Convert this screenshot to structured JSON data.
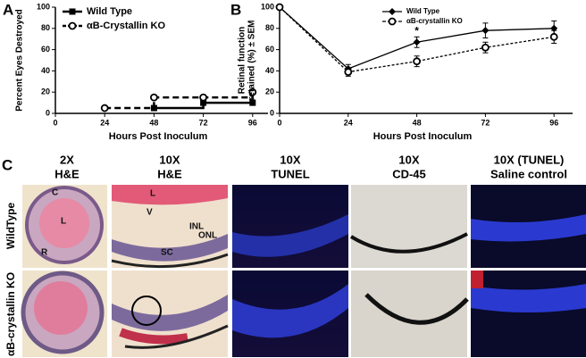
{
  "chart_data": [
    {
      "type": "line",
      "panel": "A",
      "ylabel": "Percent Eyes Destroyed",
      "xlabel": "Hours Post Inoculum",
      "x": [
        0,
        24,
        48,
        72,
        96
      ],
      "xlim": [
        0,
        100
      ],
      "xticks": [
        0,
        24,
        48,
        72,
        96
      ],
      "ylim": [
        0,
        100
      ],
      "yticks": [
        0,
        20,
        40,
        60,
        80,
        100
      ],
      "step": true,
      "legend": "upper left",
      "series": [
        {
          "name": "Wild Type",
          "color": "#000000",
          "marker": "square",
          "dashed": false,
          "values": [
            null,
            null,
            5,
            10,
            10
          ]
        },
        {
          "name": "αB-Crystallin KO",
          "color": "#000000",
          "marker": "circle",
          "dashed": true,
          "values": [
            null,
            5,
            15,
            15,
            20
          ]
        }
      ]
    },
    {
      "type": "line",
      "panel": "B",
      "ylabel": [
        "Retinal function",
        "retained (%) ± SEM"
      ],
      "xlabel": "Hours Post Inoculum",
      "x": [
        0,
        24,
        48,
        72,
        96
      ],
      "xlim": [
        0,
        100
      ],
      "xticks": [
        0,
        24,
        48,
        72,
        96
      ],
      "ylim": [
        0,
        100
      ],
      "yticks": [
        0,
        20,
        40,
        60,
        80,
        100
      ],
      "step": false,
      "legend": "upper center",
      "annotations": [
        {
          "text": "*",
          "x": 48
        }
      ],
      "series": [
        {
          "name": "Wild Type",
          "color": "#000000",
          "marker": "diamond",
          "dashed": false,
          "values": [
            100,
            42,
            67,
            78,
            80
          ],
          "errors": [
            0,
            4,
            5,
            7,
            7
          ]
        },
        {
          "name": "αB-crystallin KO",
          "color": "#000000",
          "marker": "circle",
          "dashed": true,
          "values": [
            100,
            39,
            49,
            62,
            72
          ],
          "errors": [
            0,
            4,
            5,
            5,
            6
          ]
        }
      ]
    }
  ],
  "figure_panel": {
    "label": "C",
    "columns": [
      [
        "2X",
        "H&E"
      ],
      [
        "10X",
        "H&E"
      ],
      [
        "10X",
        "TUNEL"
      ],
      [
        "10X",
        "CD-45"
      ],
      [
        "10X (TUNEL)",
        "Saline control"
      ]
    ],
    "rows": [
      "WildType",
      "αB-crystallin KO"
    ],
    "image_labels": [
      "C",
      "L",
      "R",
      "L",
      "V",
      "INL",
      "ONL",
      "SC"
    ]
  }
}
